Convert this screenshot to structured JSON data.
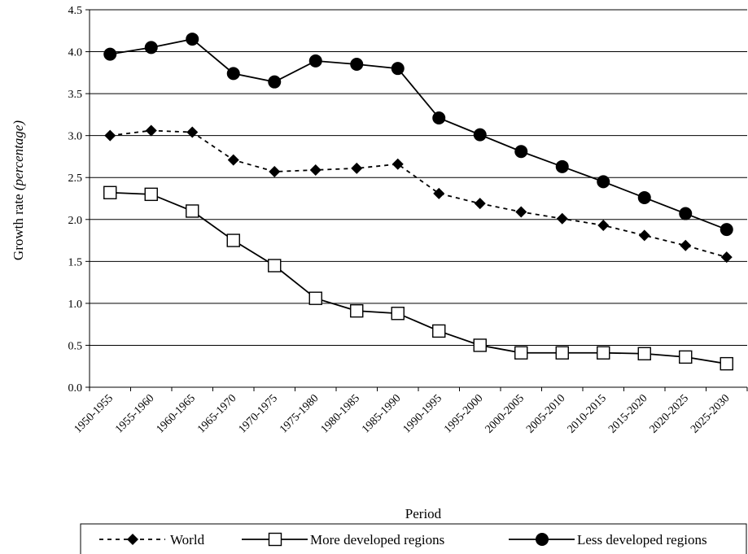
{
  "chart_data": {
    "type": "line",
    "title": "",
    "xlabel": "Period",
    "ylabel_main": "Growth rate ",
    "ylabel_italic": "(percentage)",
    "ylim": [
      0,
      4.5
    ],
    "yticks": [
      "0.0",
      "0.5",
      "1.0",
      "1.5",
      "2.0",
      "2.5",
      "3.0",
      "3.5",
      "4.0",
      "4.5"
    ],
    "ytick_values": [
      0,
      0.5,
      1.0,
      1.5,
      2.0,
      2.5,
      3.0,
      3.5,
      4.0,
      4.5
    ],
    "grid": true,
    "legend_position": "bottom",
    "categories": [
      "1950-1955",
      "1955-1960",
      "1960-1965",
      "1965-1970",
      "1970-1975",
      "1975-1980",
      "1980-1985",
      "1985-1990",
      "1990-1995",
      "1995-2000",
      "2000-2005",
      "2005-2010",
      "2010-2015",
      "2015-2020",
      "2020-2025",
      "2025-2030"
    ],
    "series": [
      {
        "name": "World",
        "style": "dashed",
        "marker": "diamond",
        "color": "#000000",
        "values": [
          3.0,
          3.06,
          3.04,
          2.71,
          2.57,
          2.59,
          2.61,
          2.66,
          2.31,
          2.19,
          2.09,
          2.01,
          1.93,
          1.81,
          1.69,
          1.55
        ]
      },
      {
        "name": "More developed regions",
        "style": "solid",
        "marker": "open-square",
        "color": "#000000",
        "values": [
          2.32,
          2.3,
          2.1,
          1.75,
          1.45,
          1.06,
          0.91,
          0.88,
          0.67,
          0.5,
          0.41,
          0.41,
          0.41,
          0.4,
          0.36,
          0.28
        ]
      },
      {
        "name": "Less developed regions",
        "style": "solid",
        "marker": "filled-circle",
        "color": "#000000",
        "values": [
          3.97,
          4.05,
          4.15,
          3.74,
          3.64,
          3.89,
          3.85,
          3.8,
          3.21,
          3.01,
          2.81,
          2.63,
          2.45,
          2.26,
          2.07,
          1.88
        ]
      }
    ]
  }
}
